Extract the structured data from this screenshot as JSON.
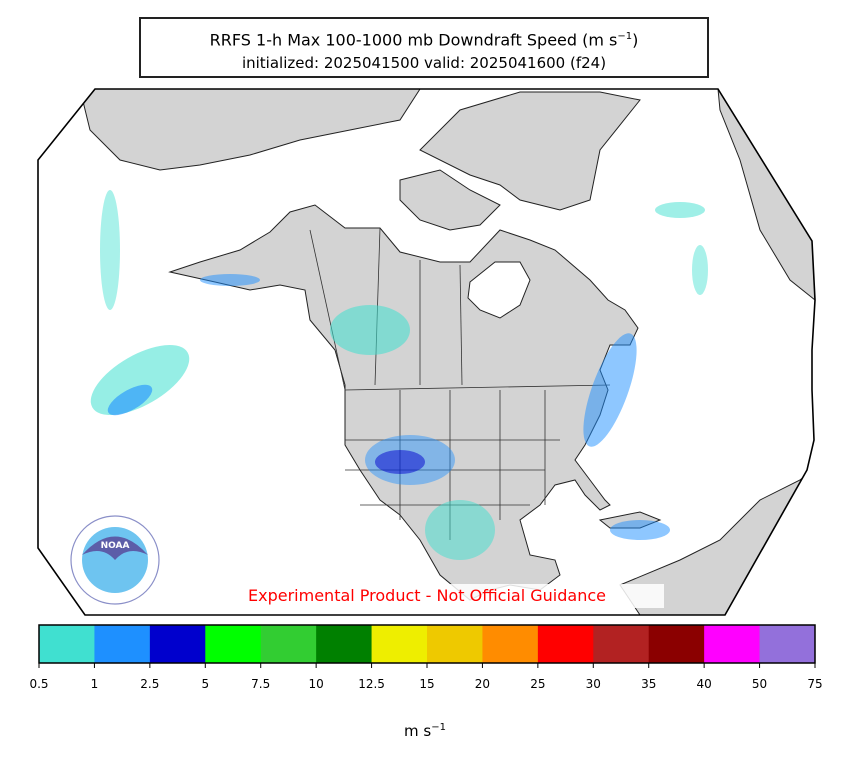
{
  "title": {
    "line1_main": "RRFS 1-h Max 100-1000 mb Downdraft Speed (m s",
    "line1_exp": "−1",
    "line1_end": ")",
    "line2": "initialized: 2025041500 valid: 2025041600 (f24)"
  },
  "disclaimer": "Experimental Product - Not Official Guidance",
  "logo": {
    "text": "NOAA",
    "icon": "noaa-logo"
  },
  "colorbar": {
    "units_main": "m s",
    "units_exp": "−1",
    "ticks": [
      "0.5",
      "1",
      "2.5",
      "5",
      "7.5",
      "10",
      "12.5",
      "15",
      "20",
      "25",
      "30",
      "35",
      "40",
      "50",
      "75"
    ],
    "colors": [
      "#40e0d0",
      "#1e90ff",
      "#0000cd",
      "#00ff00",
      "#32cd32",
      "#008000",
      "#eeee00",
      "#eec900",
      "#ff8c00",
      "#ff0000",
      "#b22222",
      "#8b0000",
      "#ff00ff",
      "#9370db"
    ]
  },
  "map": {
    "land_color": "#d3d3d3",
    "ocean_color": "#ffffff"
  }
}
